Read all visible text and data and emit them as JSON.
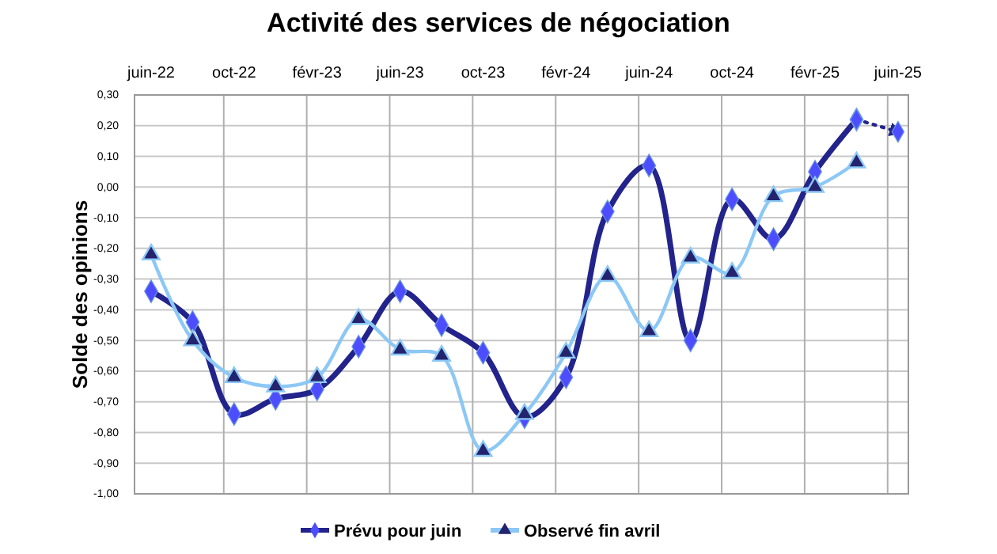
{
  "chart_data": {
    "type": "line",
    "title": "Activité des services de négociation",
    "ylabel": "Solde des opinions",
    "categories": [
      "juin-22",
      null,
      "oct-22",
      null,
      "févr-23",
      null,
      "juin-23",
      null,
      "oct-23",
      null,
      "févr-24",
      null,
      "juin-24",
      null,
      "oct-24",
      null,
      "févr-25",
      null,
      "juin-25"
    ],
    "series": [
      {
        "name": "Prévu pour juin",
        "color": "#23238c",
        "marker": "diamond",
        "line_style": "solid",
        "values": [
          -0.34,
          -0.44,
          -0.74,
          -0.69,
          -0.66,
          -0.52,
          -0.34,
          -0.45,
          -0.54,
          -0.75,
          -0.62,
          -0.08,
          0.07,
          -0.5,
          -0.04,
          -0.17,
          0.05,
          0.22,
          null
        ]
      },
      {
        "name": "Observé fin avril",
        "color": "#8cc8f5",
        "marker": "triangle",
        "line_style": "solid",
        "values": [
          -0.22,
          -0.5,
          -0.62,
          -0.65,
          -0.62,
          -0.43,
          -0.53,
          -0.55,
          -0.86,
          -0.74,
          -0.54,
          -0.29,
          -0.47,
          -0.23,
          -0.28,
          -0.03,
          0.0,
          0.08,
          null
        ]
      },
      {
        "color": "#23238c",
        "marker": "diamond",
        "line_style": "dotted",
        "values": [
          null,
          null,
          null,
          null,
          null,
          null,
          null,
          null,
          null,
          null,
          null,
          null,
          null,
          null,
          null,
          null,
          null,
          0.22,
          0.18
        ]
      }
    ],
    "ylim": [
      -1,
      0.3
    ],
    "yticks": [
      {
        "value": -1,
        "label": "-1,00"
      },
      {
        "value": -0.9,
        "label": "-0,90"
      },
      {
        "value": -0.8,
        "label": "-0,80"
      },
      {
        "value": -0.7,
        "label": "-0,70"
      },
      {
        "value": -0.6,
        "label": "-0,60"
      },
      {
        "value": -0.5,
        "label": "-0,50"
      },
      {
        "value": -0.4,
        "label": "-0,40"
      },
      {
        "value": -0.3,
        "label": "-0,30"
      },
      {
        "value": -0.2,
        "label": "-0,20"
      },
      {
        "value": -0.1,
        "label": "-0,10"
      },
      {
        "value": 0,
        "label": "0,00"
      },
      {
        "value": 0.1,
        "label": "0,10"
      },
      {
        "value": 0.2,
        "label": "0,20"
      },
      {
        "value": 0.3,
        "label": "0,30"
      }
    ],
    "grid": true,
    "legend": "bottom"
  }
}
